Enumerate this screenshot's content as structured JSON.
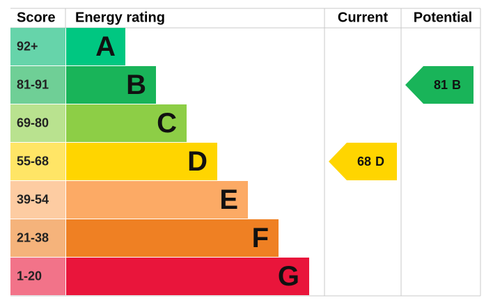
{
  "header": {
    "score": "Score",
    "rating": "Energy rating",
    "current": "Current",
    "potential": "Potential"
  },
  "bands": [
    {
      "score": "92+",
      "letter": "A",
      "color": "#00c781",
      "score_color": "#66d4aa"
    },
    {
      "score": "81-91",
      "letter": "B",
      "color": "#19b459",
      "score_color": "#6fcf96"
    },
    {
      "score": "69-80",
      "letter": "C",
      "color": "#8dce46",
      "score_color": "#b9e28f"
    },
    {
      "score": "55-68",
      "letter": "D",
      "color": "#ffd500",
      "score_color": "#ffe566"
    },
    {
      "score": "39-54",
      "letter": "E",
      "color": "#fcaa65",
      "score_color": "#fdcca2"
    },
    {
      "score": "21-38",
      "letter": "F",
      "color": "#ef8023",
      "score_color": "#f5b37b"
    },
    {
      "score": "1-20",
      "letter": "G",
      "color": "#e9153b",
      "score_color": "#f27389"
    }
  ],
  "current": {
    "value": 68,
    "rating": "D"
  },
  "potential": {
    "value": 81,
    "rating": "B"
  }
}
